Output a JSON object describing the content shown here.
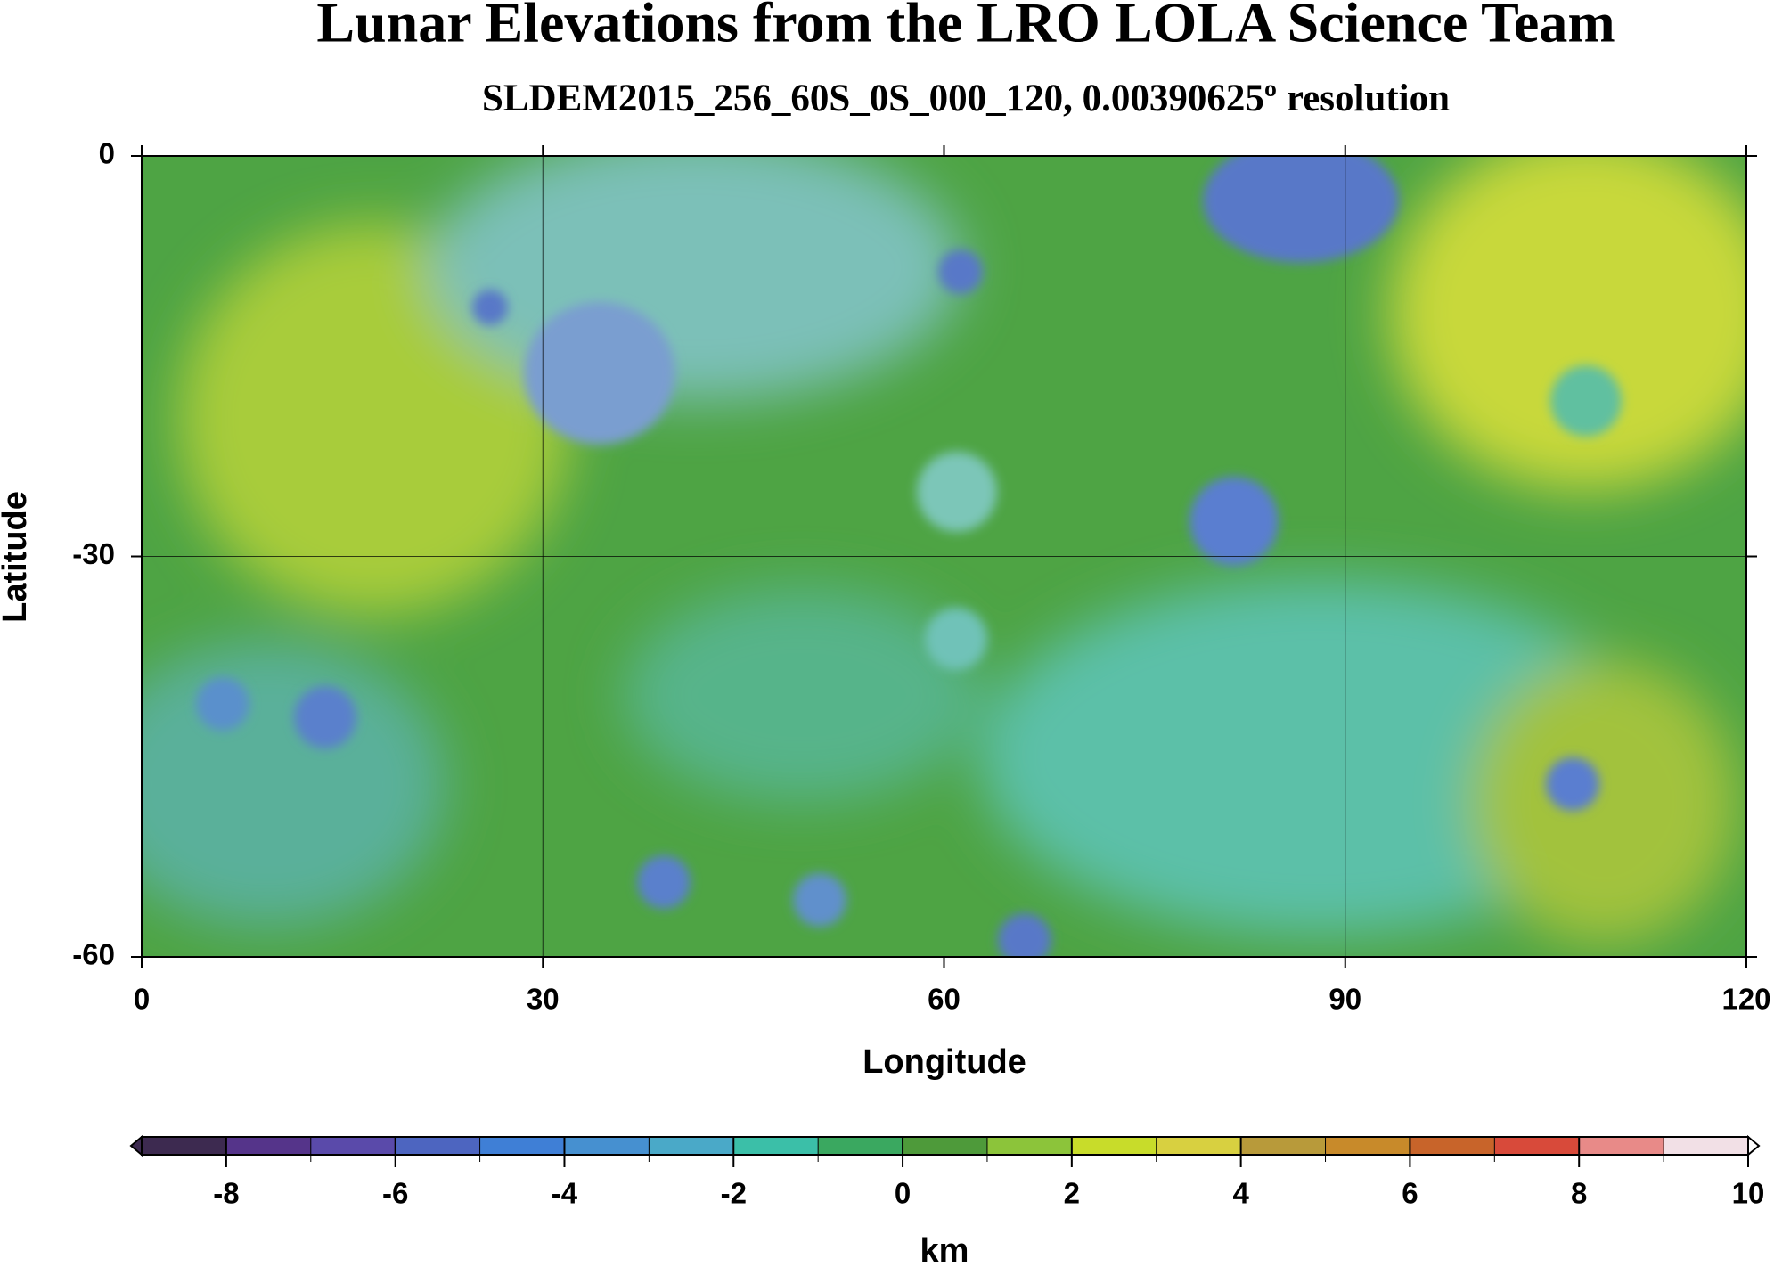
{
  "chart_data": {
    "type": "map",
    "title": "Lunar Elevations from the LRO LOLA Science Team",
    "subtitle": "SLDEM2015_256_60S_0S_000_120, 0.00390625º resolution",
    "xlabel": "Longitude",
    "ylabel": "Latitude",
    "xlim": [
      0,
      120
    ],
    "ylim": [
      -60,
      0
    ],
    "xticks": [
      0,
      30,
      60,
      90,
      120
    ],
    "yticks": [
      0,
      -30,
      -60
    ],
    "grid": true,
    "colorbar": {
      "label": "km",
      "lim": [
        -9,
        10
      ],
      "ticks": [
        -8,
        -6,
        -4,
        -2,
        0,
        2,
        4,
        6,
        8,
        10
      ],
      "colors": [
        "#3d2a50",
        "#55348a",
        "#5a4aaa",
        "#4d65c0",
        "#3f7fd6",
        "#4690d0",
        "#4aa9c8",
        "#3bbfa8",
        "#3aa860",
        "#4e9a3a",
        "#8cc43a",
        "#c8dc2a",
        "#d8d040",
        "#b89a3a",
        "#c88a2a",
        "#c8642a",
        "#d84a3a",
        "#e88a88",
        "#f2e0e6"
      ]
    }
  }
}
